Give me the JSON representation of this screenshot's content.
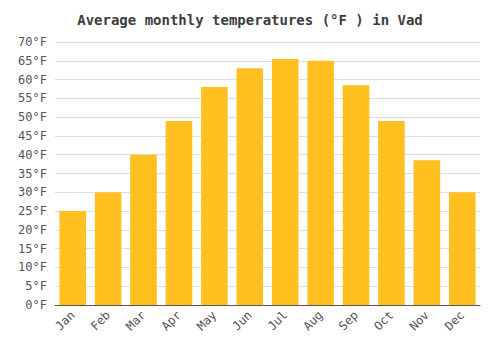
{
  "chart_data": {
    "type": "bar",
    "title": "Average monthly temperatures (°F ) in Vad",
    "categories": [
      "Jan",
      "Feb",
      "Mar",
      "Apr",
      "May",
      "Jun",
      "Jul",
      "Aug",
      "Sep",
      "Oct",
      "Nov",
      "Dec"
    ],
    "values": [
      25,
      30,
      40,
      49,
      58,
      63,
      65.5,
      65,
      58.5,
      49,
      38.5,
      30
    ],
    "color": "#FFC020",
    "ylim": [
      0,
      70
    ],
    "yticks": [
      {
        "value": 0,
        "label": "0°F"
      },
      {
        "value": 5,
        "label": "5°F"
      },
      {
        "value": 10,
        "label": "10°F"
      },
      {
        "value": 15,
        "label": "15°F"
      },
      {
        "value": 20,
        "label": "20°F"
      },
      {
        "value": 25,
        "label": "25°F"
      },
      {
        "value": 30,
        "label": "30°F"
      },
      {
        "value": 35,
        "label": "35°F"
      },
      {
        "value": 40,
        "label": "40°F"
      },
      {
        "value": 45,
        "label": "45°F"
      },
      {
        "value": 50,
        "label": "50°F"
      },
      {
        "value": 55,
        "label": "55°F"
      },
      {
        "value": 60,
        "label": "60°F"
      },
      {
        "value": 65,
        "label": "65°F"
      },
      {
        "value": 70,
        "label": "70°F"
      }
    ],
    "grid": true
  }
}
